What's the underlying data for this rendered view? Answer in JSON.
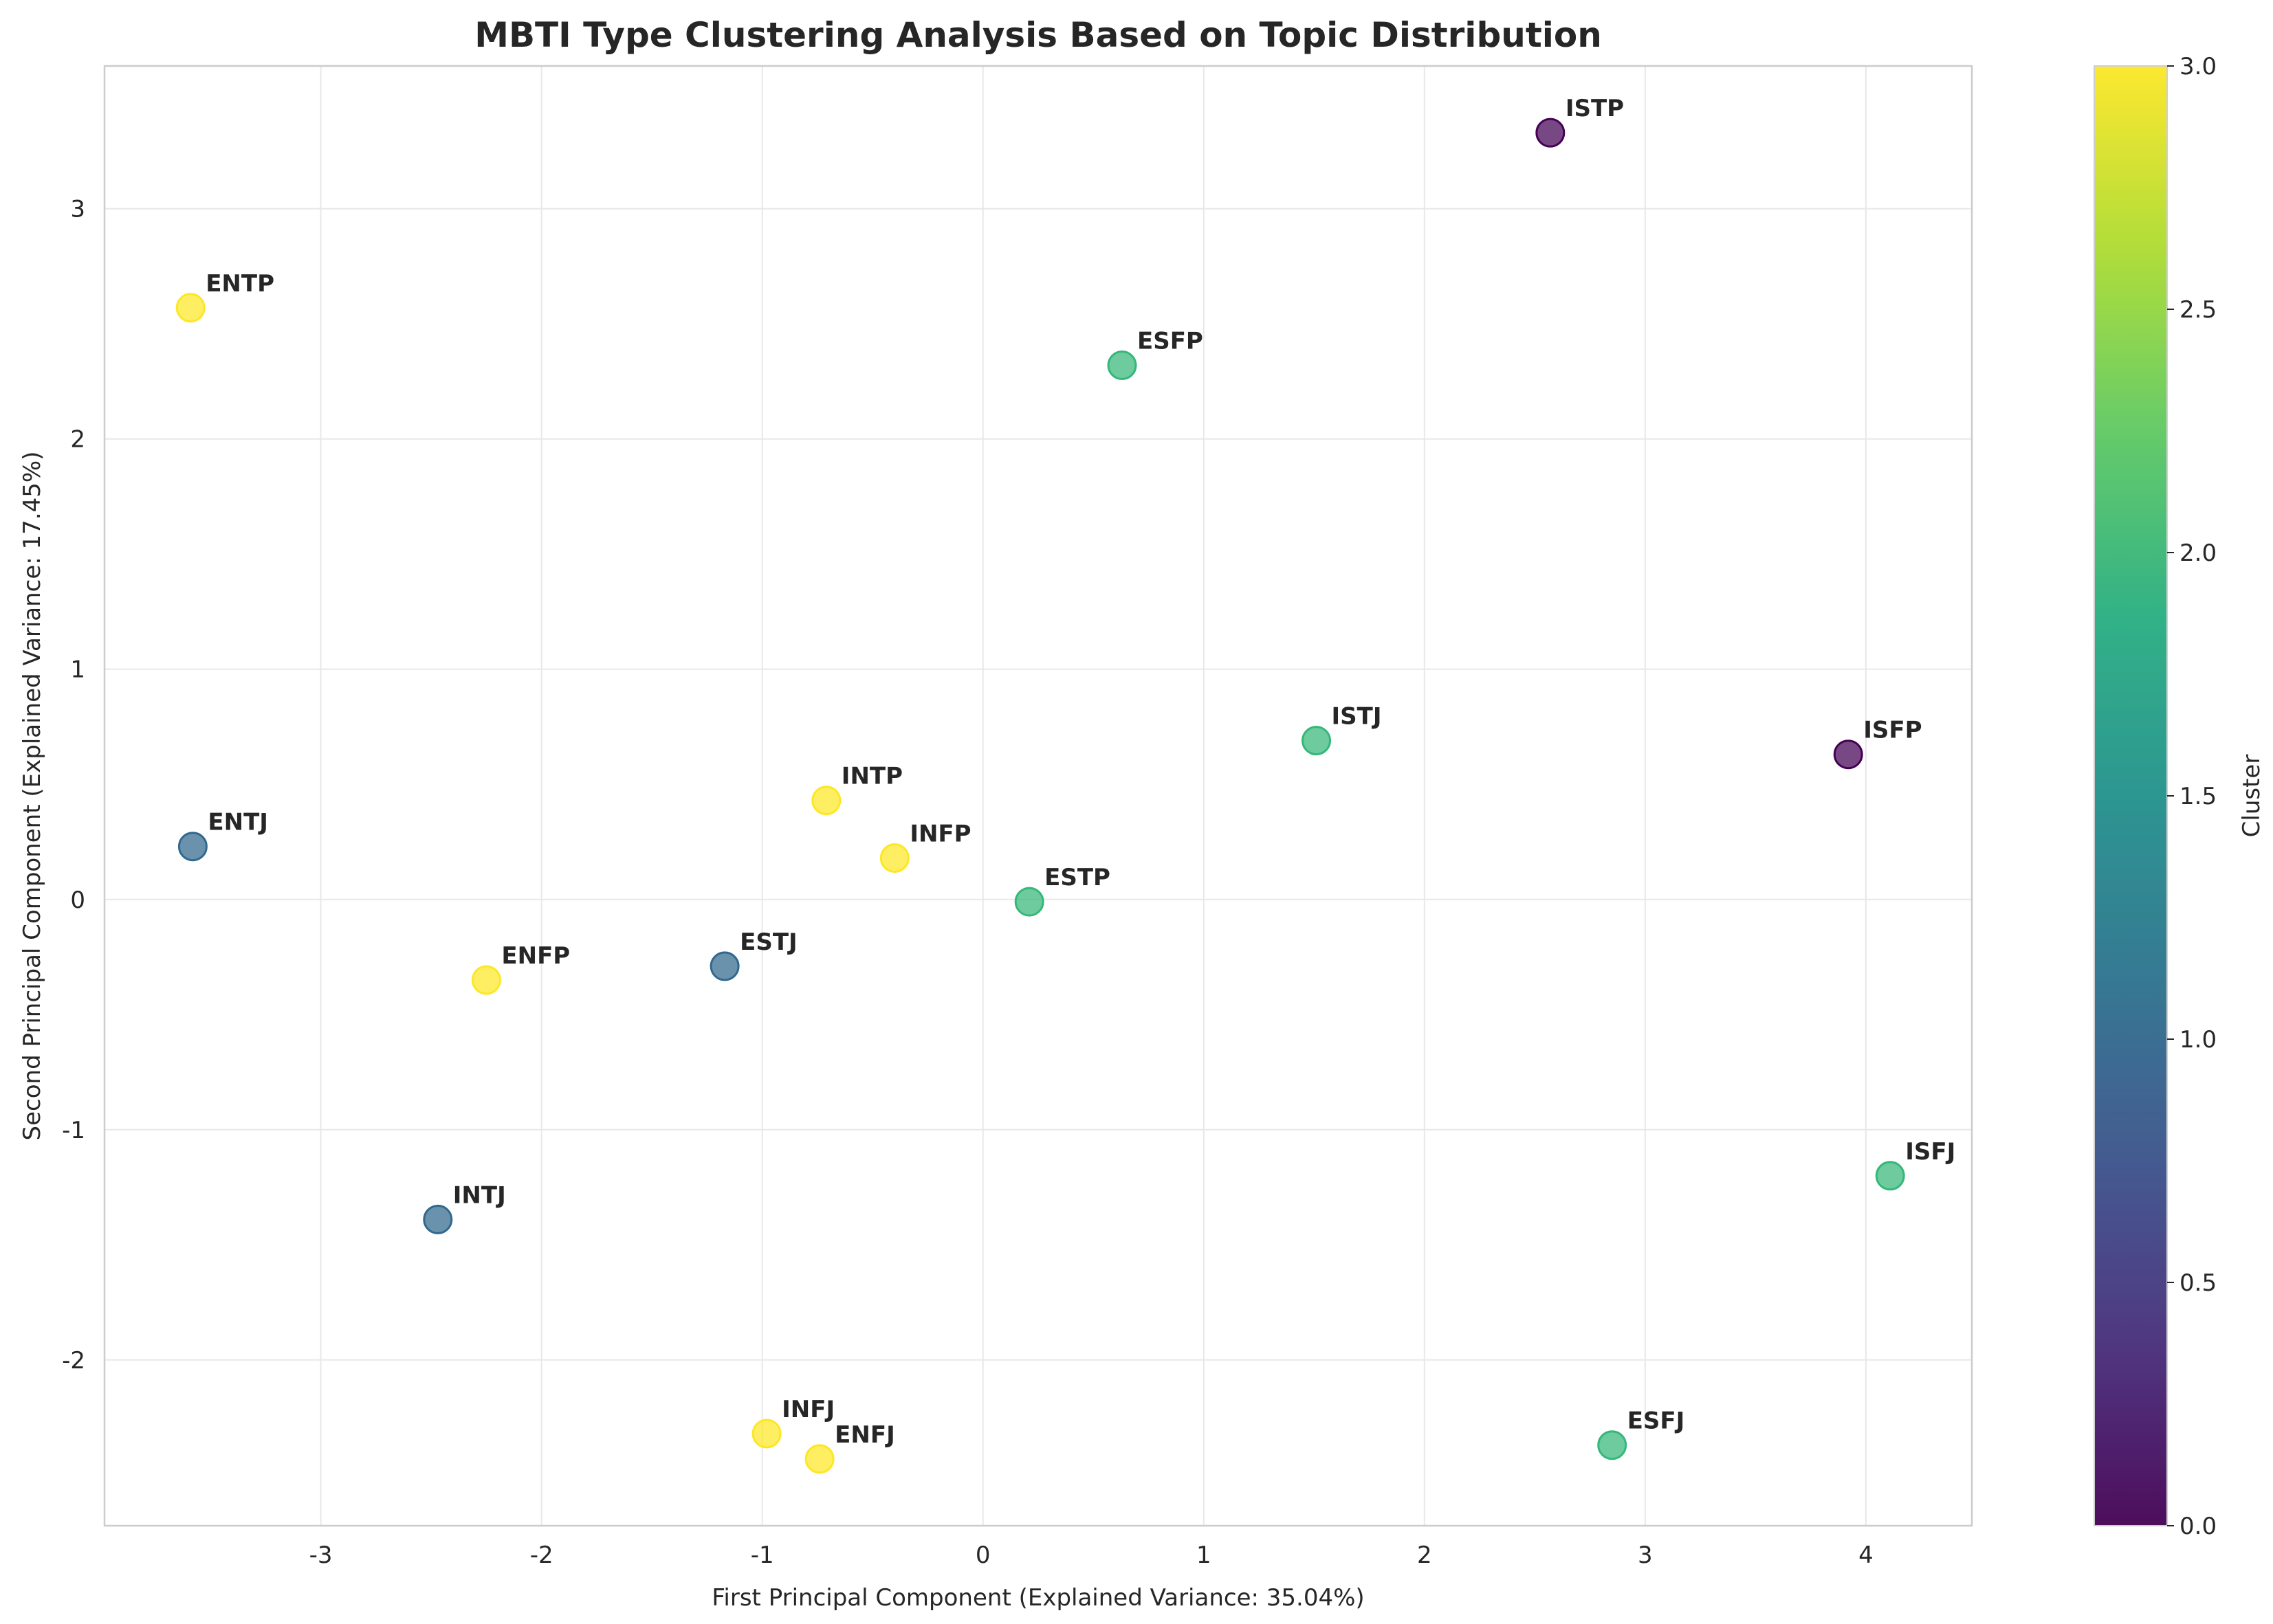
{
  "chart_data": {
    "type": "scatter",
    "title": "MBTI Type Clustering Analysis Based on Topic Distribution",
    "xlabel": "First Principal Component (Explained Variance: 35.04%)",
    "ylabel": "Second Principal Component (Explained Variance: 17.45%)",
    "xlim": [
      -3.98,
      4.48
    ],
    "ylim": [
      -2.72,
      3.62
    ],
    "xticks": [
      -3,
      -2,
      -1,
      0,
      1,
      2,
      3,
      4
    ],
    "yticks": [
      -2,
      -1,
      0,
      1,
      2,
      3
    ],
    "grid": true,
    "colorbar": {
      "label": "Cluster",
      "min": 0.0,
      "max": 3.0,
      "ticks": [
        "0.0",
        "0.5",
        "1.0",
        "1.5",
        "2.0",
        "2.5",
        "3.0"
      ],
      "colormap": "viridis"
    },
    "cluster_colors": {
      "0": "#440154",
      "1": "#31688e",
      "2": "#35b779",
      "3": "#fde725"
    },
    "points": [
      {
        "label": "ISTP",
        "x": 2.57,
        "y": 3.33,
        "cluster": 0
      },
      {
        "label": "ENTP",
        "x": -3.59,
        "y": 2.57,
        "cluster": 3
      },
      {
        "label": "ESFP",
        "x": 0.63,
        "y": 2.32,
        "cluster": 2
      },
      {
        "label": "ISTJ",
        "x": 1.51,
        "y": 0.69,
        "cluster": 2
      },
      {
        "label": "ISFP",
        "x": 3.92,
        "y": 0.63,
        "cluster": 0
      },
      {
        "label": "INTP",
        "x": -0.71,
        "y": 0.43,
        "cluster": 3
      },
      {
        "label": "ENTJ",
        "x": -3.58,
        "y": 0.23,
        "cluster": 1
      },
      {
        "label": "INFP",
        "x": -0.4,
        "y": 0.18,
        "cluster": 3
      },
      {
        "label": "ESTP",
        "x": 0.21,
        "y": -0.01,
        "cluster": 2
      },
      {
        "label": "ESTJ",
        "x": -1.17,
        "y": -0.29,
        "cluster": 1
      },
      {
        "label": "ENFP",
        "x": -2.25,
        "y": -0.35,
        "cluster": 3
      },
      {
        "label": "ISFJ",
        "x": 4.11,
        "y": -1.2,
        "cluster": 2
      },
      {
        "label": "INTJ",
        "x": -2.47,
        "y": -1.39,
        "cluster": 1
      },
      {
        "label": "INFJ",
        "x": -0.98,
        "y": -2.32,
        "cluster": 3
      },
      {
        "label": "ESFJ",
        "x": 2.85,
        "y": -2.37,
        "cluster": 2
      },
      {
        "label": "ENFJ",
        "x": -0.74,
        "y": -2.43,
        "cluster": 3
      }
    ]
  }
}
